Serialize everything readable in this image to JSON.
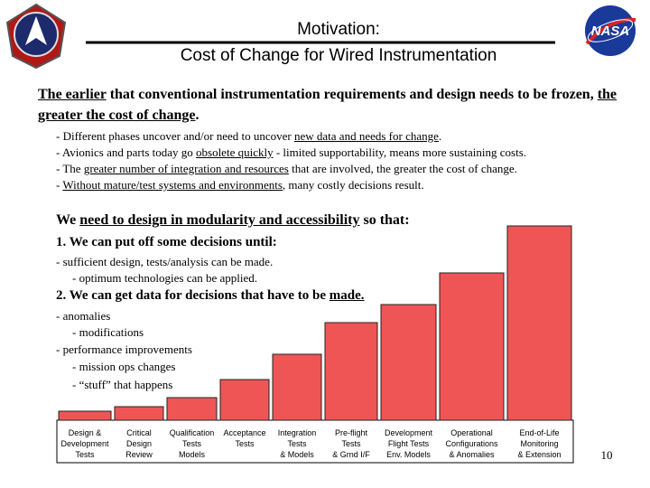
{
  "header": {
    "title": [
      "Motivation:",
      "Cost of Change for Wired Instrumentation"
    ],
    "logo_text": "NASA"
  },
  "intro": [
    "The earlier",
    " that conventional instrumentation requirements and design needs to be frozen, ",
    "the greater the cost of change",
    "."
  ],
  "bullets": [
    [
      "- Different phases uncover and/or need to uncover ",
      "new data and needs for change",
      "."
    ],
    [
      "- Avionics and parts today go ",
      "obsolete quickly",
      " - limited supportability, means more sustaining costs."
    ],
    [
      "- The ",
      "greater number of integration and resources",
      " that are involved, the greater the cost of change."
    ],
    [
      "- ",
      "Without mature/test systems and environments",
      ", many costly decisions result."
    ]
  ],
  "need": [
    "We ",
    "need to design in modularity and accessibility",
    " so that:"
  ],
  "point1": {
    "title": "1. We can put off some decisions until:",
    "items": [
      "- sufficient design, tests/analysis can be made.",
      "- optimum technologies can be applied."
    ]
  },
  "point2": {
    "title": [
      "2. We can get data for decisions that have to be ",
      "made."
    ],
    "items": [
      "- anomalies",
      "- modifications",
      "- performance improvements",
      "- mission ops changes",
      "- “stuff” that happens"
    ]
  },
  "page_number": "10",
  "chart_data": {
    "type": "bar",
    "color": "#f05555",
    "categories": [
      "Design &\nDevelopment\nTests",
      "Critical\nDesign\nReview",
      "Qualification\nTests\nModels",
      "Acceptance\nTests",
      "Integration\nTests\n& Models",
      "Pre-flight\nTests\n& Grnd I/F",
      "Development\nFlight Tests\nEnv. Models",
      "Operational\nConfigurations\n& Anomalies",
      "End-of-Life\nMonitoring\n& Extension"
    ],
    "values": [
      10,
      15,
      25,
      45,
      73,
      108,
      128,
      163,
      215
    ],
    "ylim": [
      0,
      215
    ]
  }
}
